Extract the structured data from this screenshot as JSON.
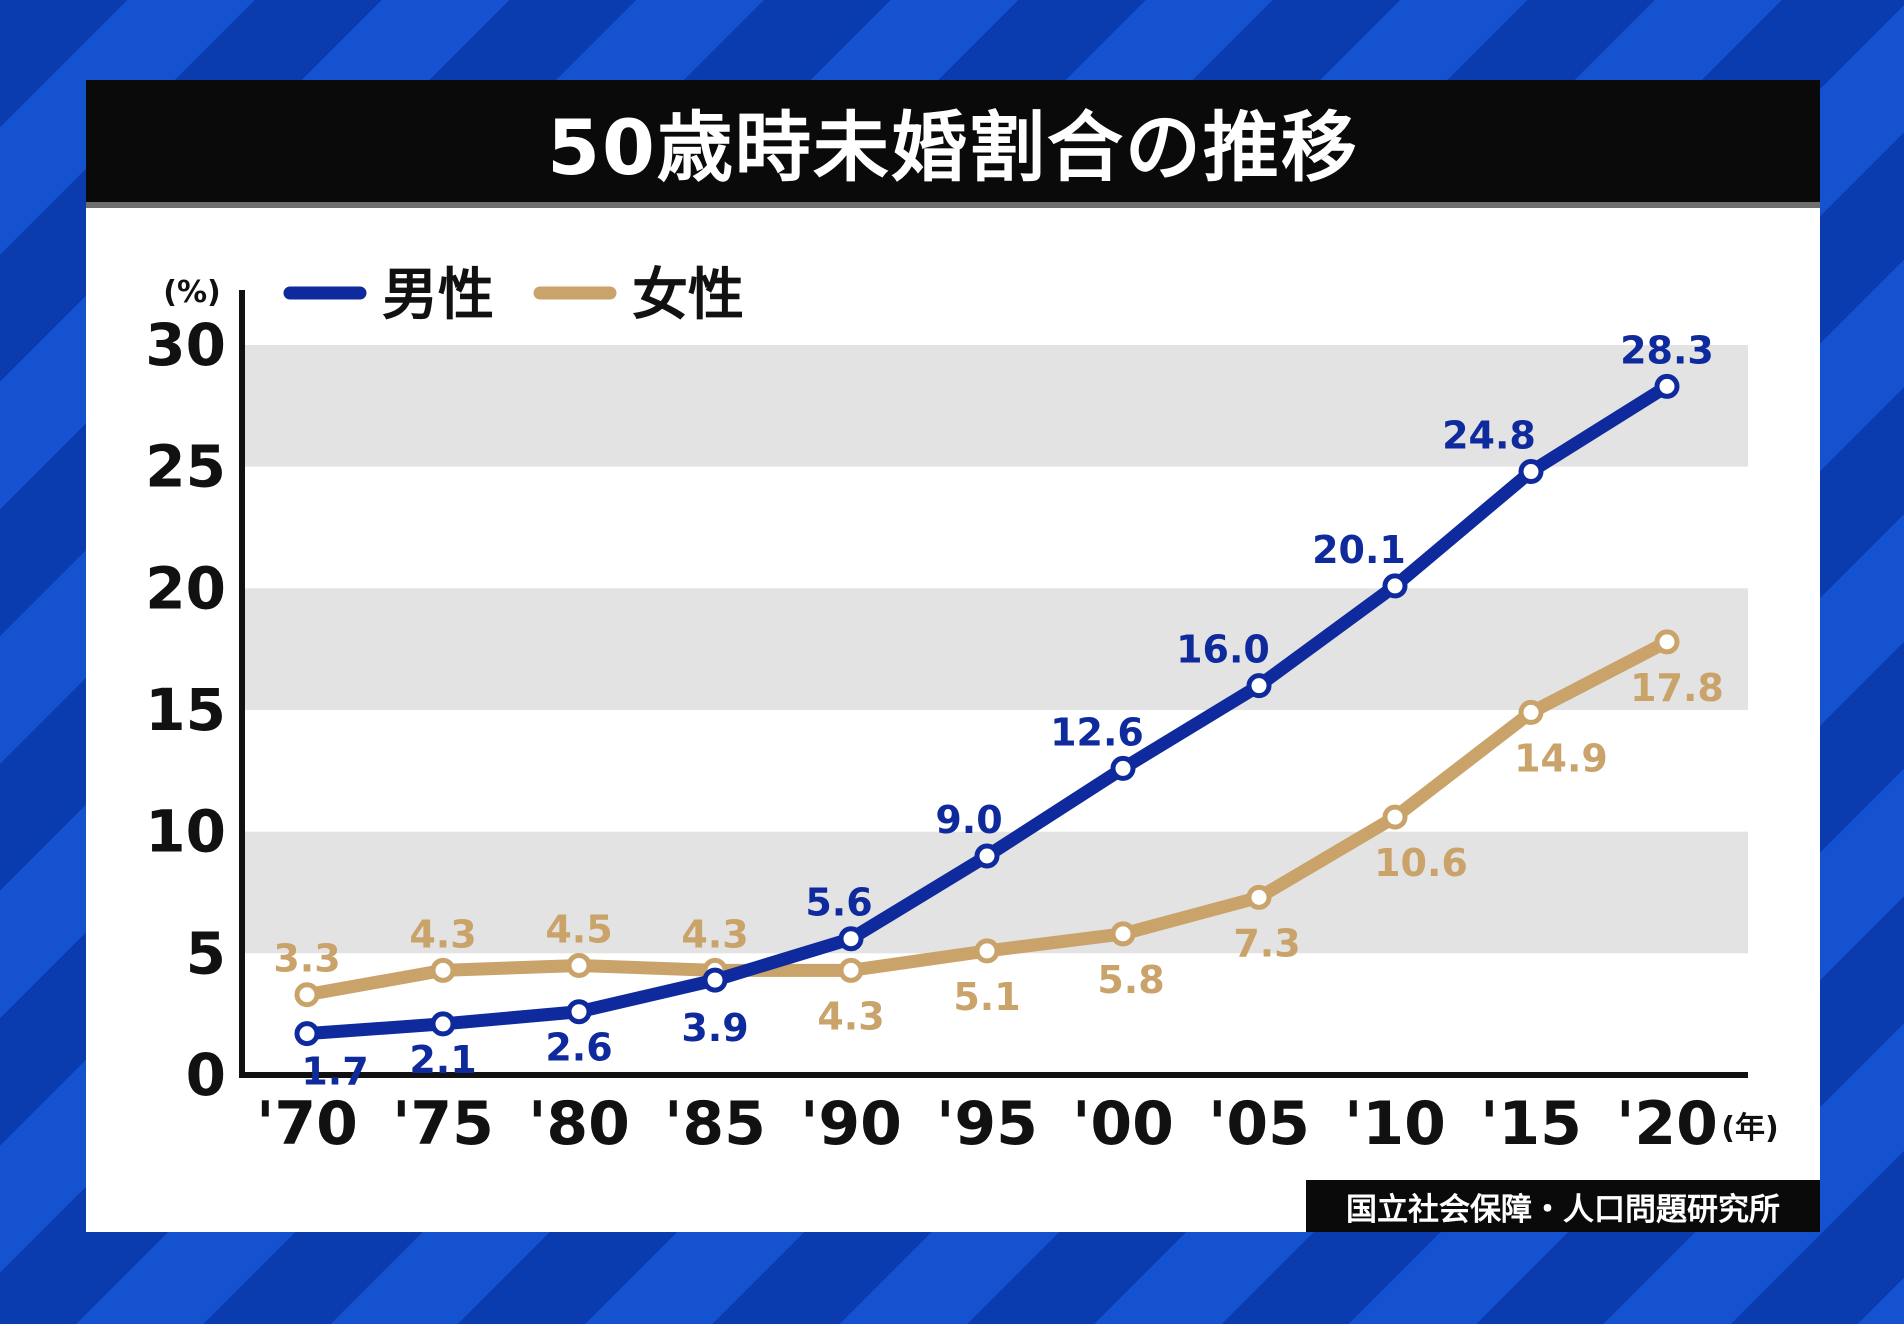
{
  "title": "50歳時未婚割合の推移",
  "source": "国立社会保障・人口問題研究所",
  "chart_data": {
    "type": "line",
    "ylabel": "(%)",
    "xlabel": "(年)",
    "ylim": [
      0,
      30
    ],
    "yticks": [
      "0",
      "5",
      "10",
      "15",
      "20",
      "25",
      "30"
    ],
    "categories": [
      "'70",
      "'75",
      "'80",
      "'85",
      "'90",
      "'95",
      "'00",
      "'05",
      "'10",
      "'15",
      "'20"
    ],
    "legend_position": "top-left",
    "series": [
      {
        "name": "男性",
        "color": "#0f2a9c",
        "values": [
          1.7,
          2.1,
          2.6,
          3.9,
          5.6,
          9.0,
          12.6,
          16.0,
          20.1,
          24.8,
          28.3
        ],
        "labels": [
          "1.7",
          "2.1",
          "2.6",
          "3.9",
          "5.6",
          "9.0",
          "12.6",
          "16.0",
          "20.1",
          "24.8",
          "28.3"
        ]
      },
      {
        "name": "女性",
        "color": "#c9a36a",
        "values": [
          3.3,
          4.3,
          4.5,
          4.3,
          4.3,
          5.1,
          5.8,
          7.3,
          10.6,
          14.9,
          17.8
        ],
        "labels": [
          "3.3",
          "4.3",
          "4.5",
          "4.3",
          "4.3",
          "5.1",
          "5.8",
          "7.3",
          "10.6",
          "14.9",
          "17.8"
        ]
      }
    ]
  }
}
